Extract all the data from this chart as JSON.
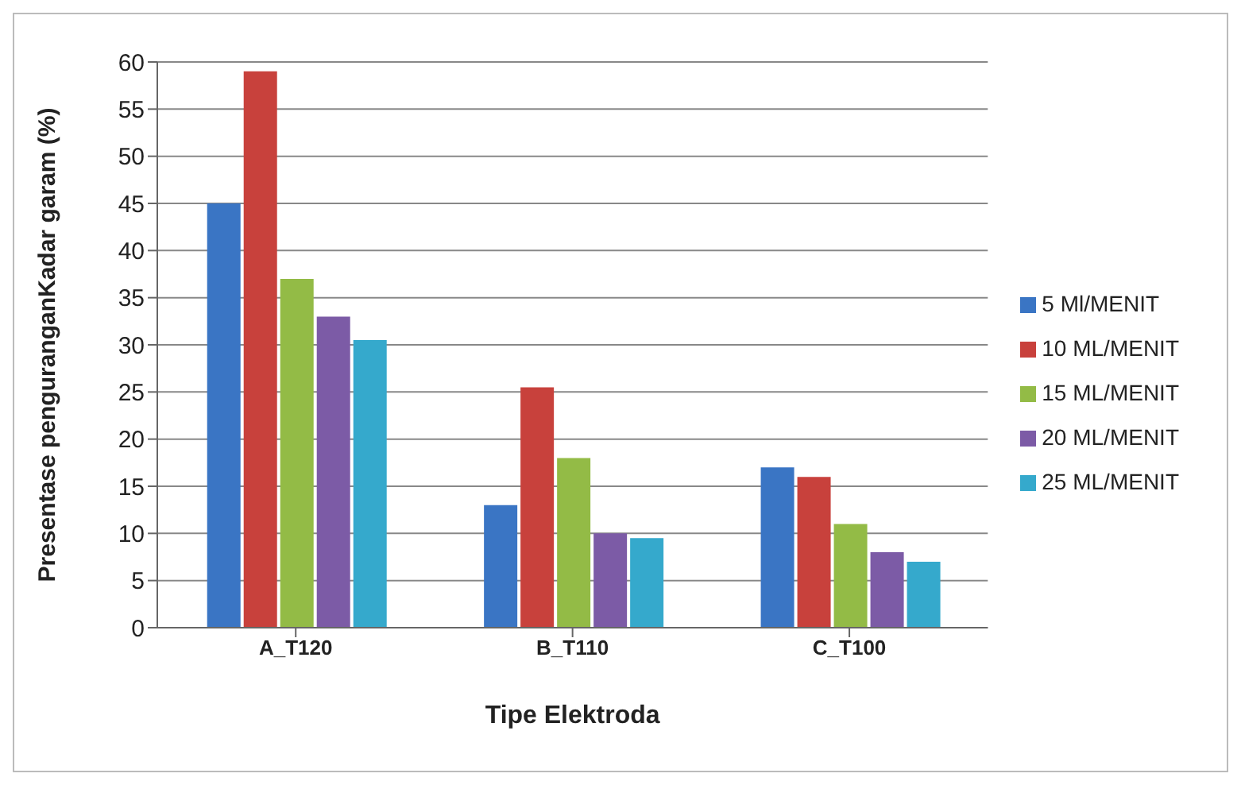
{
  "chart_data": {
    "type": "bar",
    "xlabel": "Tipe Elektroda",
    "ylabel": "Presentase penguranganKadar garam (%)",
    "categories": [
      "A_T120",
      "B_T110",
      "C_T100"
    ],
    "series": [
      {
        "name": "5 Ml/MENIT",
        "color": "#3a75c4",
        "values": [
          45,
          13,
          17
        ]
      },
      {
        "name": "10 ML/MENIT",
        "color": "#c8413c",
        "values": [
          59,
          25.5,
          16
        ]
      },
      {
        "name": "15 ML/MENIT",
        "color": "#93bb46",
        "values": [
          37,
          18,
          11
        ]
      },
      {
        "name": "20 ML/MENIT",
        "color": "#7c5ba6",
        "values": [
          33,
          10,
          8
        ]
      },
      {
        "name": "25 ML/MENIT",
        "color": "#35a9cc",
        "values": [
          30.5,
          9.5,
          7
        ]
      }
    ],
    "ylim": [
      0,
      60
    ],
    "yticks": [
      0,
      5,
      10,
      15,
      20,
      25,
      30,
      35,
      40,
      45,
      50,
      55,
      60
    ],
    "grid": "y",
    "legend": "right"
  }
}
